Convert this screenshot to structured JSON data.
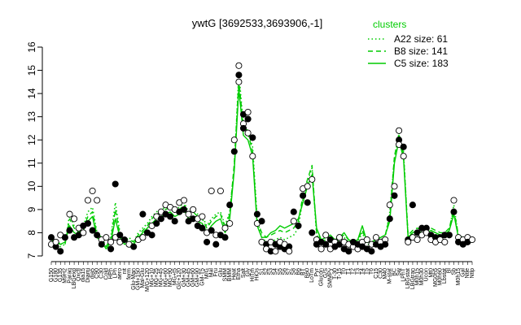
{
  "chart_data": {
    "type": "line",
    "title": "ywtG [3692533,3693906,-1]",
    "xlabel": "",
    "ylabel": "",
    "ylim": [
      7,
      16
    ],
    "yticks": [
      7,
      8,
      9,
      10,
      11,
      12,
      13,
      14,
      15,
      16
    ],
    "grid": false,
    "legend": {
      "title": "clusters",
      "placement": "top-right",
      "color": "#00cc00",
      "entries": [
        {
          "label": "A22 size: 61",
          "style": "dotted"
        },
        {
          "label": "B8 size: 141",
          "style": "dashed"
        },
        {
          "label": "C5 size: 183",
          "style": "solid"
        }
      ]
    },
    "colors": {
      "series": "#00cc00",
      "points": "#000000",
      "axes": "#000000"
    },
    "x_tick_labels": [
      "G150",
      "G180",
      "G135",
      "M9H2",
      "Paraq",
      "LBGexp",
      "Oxctl",
      "dia15",
      "Diami",
      "dia5",
      "C90",
      "C30",
      "Cold",
      "HPh",
      "LPh",
      "aero",
      "nit",
      "ferm",
      "Glu-Man",
      "GM+150",
      "Mal-Glu",
      "M/G+120",
      "MG+10",
      "MG+25",
      "MG+45",
      "MG+60",
      "MG+90",
      "MG+t5",
      "Glc+120",
      "GM+30",
      "GM+45",
      "GM+60",
      "GM+90",
      "GM-T5",
      "M/G",
      "Mal",
      "Fru",
      "Glu",
      "SMM",
      "BMM",
      "Heat",
      "Etha",
      "Salt",
      "Gly",
      "HiTm",
      "HiOs",
      "S1",
      "S2",
      "S3",
      "S4",
      "S5",
      "S6",
      "S7",
      "S8",
      "B6",
      "BT",
      "B60",
      "LoTm",
      "Pyr",
      "Glucon",
      "G/S",
      "SMMPy",
      "T-30",
      "T-15",
      "T0",
      "T1",
      "T2",
      "T3",
      "T4",
      "T5",
      "T6",
      "C15",
      "C30",
      "M40",
      "M-stat",
      "BC",
      "Sw",
      "LPhT",
      "LBGstat",
      "LBGtran",
      "M0h15",
      "M0h30",
      "Ucon",
      "Mt0",
      "MG0h5",
      "M0h60",
      "Lbstat",
      "Bl",
      "Sb",
      "M0h15",
      "Gal",
      "Ntle",
      "Ntlp"
    ],
    "series": [
      {
        "name": "C5 size: 183",
        "style": "solid",
        "values": [
          7.7,
          7.6,
          7.5,
          7.6,
          8.3,
          8.0,
          7.9,
          8.1,
          8.5,
          8.7,
          7.8,
          7.6,
          7.3,
          7.6,
          8.6,
          7.8,
          7.5,
          7.6,
          7.5,
          7.8,
          8.0,
          8.2,
          8.4,
          8.6,
          8.7,
          8.8,
          8.9,
          8.7,
          8.8,
          9.0,
          8.6,
          8.7,
          8.5,
          8.4,
          8.0,
          8.3,
          8.5,
          8.6,
          8.0,
          8.6,
          10.7,
          14.2,
          12.2,
          12.0,
          11.3,
          8.3,
          7.8,
          7.8,
          8.0,
          8.1,
          8.3,
          8.2,
          8.3,
          8.4,
          8.6,
          9.3,
          10.0,
          10.5,
          8.2,
          7.7,
          7.8,
          7.9,
          7.7,
          7.8,
          8.0,
          7.7,
          7.6,
          7.7,
          8.3,
          7.6,
          7.6,
          7.7,
          7.8,
          7.9,
          8.5,
          11.0,
          12.0,
          11.2,
          7.8,
          8.0,
          8.1,
          8.0,
          8.0,
          8.1,
          8.0,
          7.9,
          7.9,
          8.1,
          8.8,
          7.8,
          7.7,
          7.6,
          7.6
        ]
      },
      {
        "name": "B8 size: 141",
        "style": "dashed",
        "values": [
          7.6,
          7.7,
          7.5,
          7.5,
          8.6,
          8.2,
          8.0,
          8.2,
          8.7,
          8.9,
          7.9,
          7.7,
          7.4,
          7.7,
          9.0,
          7.9,
          7.6,
          7.7,
          7.6,
          7.9,
          8.1,
          8.3,
          8.6,
          8.8,
          8.9,
          9.0,
          9.1,
          8.9,
          9.0,
          9.2,
          8.8,
          8.9,
          8.7,
          8.6,
          8.2,
          8.5,
          8.7,
          8.8,
          8.2,
          8.8,
          11.0,
          14.6,
          12.5,
          12.3,
          11.5,
          8.5,
          8.0,
          7.8,
          7.9,
          8.0,
          8.1,
          8.0,
          8.1,
          8.2,
          8.5,
          9.6,
          10.3,
          10.9,
          8.0,
          7.7,
          7.8,
          7.8,
          7.7,
          7.8,
          7.9,
          7.7,
          7.6,
          7.7,
          8.1,
          7.6,
          7.6,
          7.7,
          7.8,
          7.9,
          8.7,
          11.3,
          12.2,
          11.4,
          7.9,
          8.1,
          8.2,
          8.1,
          8.1,
          8.2,
          8.1,
          8.0,
          8.0,
          8.2,
          9.0,
          7.9,
          7.8,
          7.7,
          7.7
        ]
      },
      {
        "name": "A22 size: 61",
        "style": "dotted",
        "values": [
          7.5,
          7.6,
          7.4,
          7.5,
          8.8,
          8.3,
          8.1,
          8.3,
          8.9,
          9.1,
          8.0,
          7.8,
          7.4,
          7.8,
          9.3,
          8.0,
          7.6,
          7.8,
          7.6,
          8.0,
          8.2,
          8.4,
          8.7,
          8.9,
          9.0,
          9.1,
          9.2,
          9.0,
          9.1,
          9.3,
          8.9,
          9.0,
          8.8,
          8.7,
          8.3,
          8.6,
          8.8,
          8.9,
          8.3,
          8.9,
          10.8,
          14.9,
          12.6,
          12.4,
          11.7,
          8.6,
          7.8,
          7.6,
          7.6,
          7.7,
          7.8,
          7.7,
          7.8,
          7.9,
          8.2,
          9.5,
          10.2,
          10.8,
          7.9,
          7.6,
          7.7,
          7.7,
          7.6,
          7.7,
          7.8,
          7.6,
          7.5,
          7.6,
          8.0,
          7.5,
          7.5,
          7.6,
          7.7,
          7.8,
          8.9,
          11.2,
          12.3,
          11.5,
          7.8,
          8.0,
          8.1,
          8.0,
          8.0,
          8.1,
          8.0,
          7.9,
          7.9,
          8.1,
          9.2,
          7.8,
          7.7,
          7.6,
          7.6
        ]
      }
    ],
    "points": [
      {
        "x": 0,
        "y": 7.8
      },
      {
        "x": 0,
        "y": 7.5
      },
      {
        "x": 1,
        "y": 7.4
      },
      {
        "x": 1,
        "y": 7.6
      },
      {
        "x": 2,
        "y": 7.2
      },
      {
        "x": 2,
        "y": 7.9
      },
      {
        "x": 3,
        "y": 7.8
      },
      {
        "x": 4,
        "y": 8.8
      },
      {
        "x": 4,
        "y": 8.1
      },
      {
        "x": 5,
        "y": 8.6
      },
      {
        "x": 5,
        "y": 7.8
      },
      {
        "x": 6,
        "y": 8.2
      },
      {
        "x": 6,
        "y": 7.9
      },
      {
        "x": 7,
        "y": 8.0
      },
      {
        "x": 7,
        "y": 8.3
      },
      {
        "x": 8,
        "y": 9.4
      },
      {
        "x": 8,
        "y": 8.4
      },
      {
        "x": 9,
        "y": 9.8
      },
      {
        "x": 9,
        "y": 8.1
      },
      {
        "x": 10,
        "y": 9.4
      },
      {
        "x": 10,
        "y": 7.9
      },
      {
        "x": 11,
        "y": 7.7
      },
      {
        "x": 11,
        "y": 7.5
      },
      {
        "x": 12,
        "y": 7.8
      },
      {
        "x": 13,
        "y": 7.3
      },
      {
        "x": 13,
        "y": 7.6
      },
      {
        "x": 14,
        "y": 10.1
      },
      {
        "x": 14,
        "y": 7.8
      },
      {
        "x": 15,
        "y": 7.9
      },
      {
        "x": 15,
        "y": 7.6
      },
      {
        "x": 16,
        "y": 7.7
      },
      {
        "x": 17,
        "y": 7.5
      },
      {
        "x": 18,
        "y": 7.4
      },
      {
        "x": 19,
        "y": 7.7
      },
      {
        "x": 20,
        "y": 8.8
      },
      {
        "x": 20,
        "y": 7.8
      },
      {
        "x": 21,
        "y": 8.0
      },
      {
        "x": 22,
        "y": 8.3
      },
      {
        "x": 22,
        "y": 7.9
      },
      {
        "x": 23,
        "y": 8.7
      },
      {
        "x": 23,
        "y": 8.4
      },
      {
        "x": 24,
        "y": 8.9
      },
      {
        "x": 24,
        "y": 8.6
      },
      {
        "x": 25,
        "y": 9.2
      },
      {
        "x": 25,
        "y": 8.8
      },
      {
        "x": 26,
        "y": 9.1
      },
      {
        "x": 26,
        "y": 8.7
      },
      {
        "x": 27,
        "y": 9.0
      },
      {
        "x": 27,
        "y": 8.5
      },
      {
        "x": 28,
        "y": 9.3
      },
      {
        "x": 28,
        "y": 8.9
      },
      {
        "x": 29,
        "y": 9.4
      },
      {
        "x": 29,
        "y": 9.0
      },
      {
        "x": 30,
        "y": 8.8
      },
      {
        "x": 30,
        "y": 8.5
      },
      {
        "x": 31,
        "y": 9.0
      },
      {
        "x": 31,
        "y": 8.6
      },
      {
        "x": 32,
        "y": 8.6
      },
      {
        "x": 32,
        "y": 8.3
      },
      {
        "x": 33,
        "y": 8.7
      },
      {
        "x": 33,
        "y": 8.2
      },
      {
        "x": 34,
        "y": 8.0
      },
      {
        "x": 34,
        "y": 7.6
      },
      {
        "x": 35,
        "y": 9.8
      },
      {
        "x": 35,
        "y": 8.1
      },
      {
        "x": 36,
        "y": 7.9
      },
      {
        "x": 36,
        "y": 7.5
      },
      {
        "x": 37,
        "y": 9.8
      },
      {
        "x": 37,
        "y": 7.9
      },
      {
        "x": 38,
        "y": 8.2
      },
      {
        "x": 38,
        "y": 7.8
      },
      {
        "x": 39,
        "y": 8.4
      },
      {
        "x": 39,
        "y": 9.2
      },
      {
        "x": 40,
        "y": 12.0
      },
      {
        "x": 40,
        "y": 11.5
      },
      {
        "x": 41,
        "y": 15.2
      },
      {
        "x": 41,
        "y": 14.8
      },
      {
        "x": 41,
        "y": 14.5
      },
      {
        "x": 42,
        "y": 13.1
      },
      {
        "x": 42,
        "y": 12.7
      },
      {
        "x": 42,
        "y": 12.5
      },
      {
        "x": 43,
        "y": 13.2
      },
      {
        "x": 43,
        "y": 12.9
      },
      {
        "x": 43,
        "y": 12.3
      },
      {
        "x": 44,
        "y": 12.1
      },
      {
        "x": 44,
        "y": 11.3
      },
      {
        "x": 45,
        "y": 8.8
      },
      {
        "x": 45,
        "y": 8.4
      },
      {
        "x": 46,
        "y": 8.5
      },
      {
        "x": 46,
        "y": 7.6
      },
      {
        "x": 47,
        "y": 7.5
      },
      {
        "x": 47,
        "y": 7.3
      },
      {
        "x": 48,
        "y": 7.2
      },
      {
        "x": 48,
        "y": 7.6
      },
      {
        "x": 49,
        "y": 7.5
      },
      {
        "x": 49,
        "y": 7.2
      },
      {
        "x": 50,
        "y": 7.4
      },
      {
        "x": 50,
        "y": 7.6
      },
      {
        "x": 51,
        "y": 7.3
      },
      {
        "x": 51,
        "y": 7.5
      },
      {
        "x": 52,
        "y": 7.4
      },
      {
        "x": 52,
        "y": 7.2
      },
      {
        "x": 53,
        "y": 8.9
      },
      {
        "x": 53,
        "y": 8.5
      },
      {
        "x": 54,
        "y": 8.3
      },
      {
        "x": 55,
        "y": 9.9
      },
      {
        "x": 55,
        "y": 9.6
      },
      {
        "x": 56,
        "y": 10.0
      },
      {
        "x": 56,
        "y": 9.3
      },
      {
        "x": 57,
        "y": 10.3
      },
      {
        "x": 57,
        "y": 8.0
      },
      {
        "x": 58,
        "y": 7.7
      },
      {
        "x": 58,
        "y": 7.5
      },
      {
        "x": 59,
        "y": 7.3
      },
      {
        "x": 59,
        "y": 7.6
      },
      {
        "x": 60,
        "y": 7.9
      },
      {
        "x": 60,
        "y": 7.5
      },
      {
        "x": 61,
        "y": 7.3
      },
      {
        "x": 61,
        "y": 7.7
      },
      {
        "x": 62,
        "y": 7.6
      },
      {
        "x": 62,
        "y": 7.4
      },
      {
        "x": 63,
        "y": 7.8
      },
      {
        "x": 63,
        "y": 7.5
      },
      {
        "x": 64,
        "y": 7.6
      },
      {
        "x": 64,
        "y": 7.3
      },
      {
        "x": 65,
        "y": 7.5
      },
      {
        "x": 65,
        "y": 7.2
      },
      {
        "x": 66,
        "y": 7.4
      },
      {
        "x": 66,
        "y": 7.6
      },
      {
        "x": 67,
        "y": 7.3
      },
      {
        "x": 67,
        "y": 7.5
      },
      {
        "x": 68,
        "y": 7.6
      },
      {
        "x": 68,
        "y": 7.4
      },
      {
        "x": 69,
        "y": 7.7
      },
      {
        "x": 69,
        "y": 7.3
      },
      {
        "x": 70,
        "y": 7.5
      },
      {
        "x": 70,
        "y": 7.2
      },
      {
        "x": 71,
        "y": 7.8
      },
      {
        "x": 71,
        "y": 7.5
      },
      {
        "x": 72,
        "y": 7.6
      },
      {
        "x": 72,
        "y": 7.4
      },
      {
        "x": 73,
        "y": 7.7
      },
      {
        "x": 73,
        "y": 7.5
      },
      {
        "x": 74,
        "y": 9.2
      },
      {
        "x": 74,
        "y": 8.6
      },
      {
        "x": 75,
        "y": 10.0
      },
      {
        "x": 75,
        "y": 9.6
      },
      {
        "x": 76,
        "y": 12.4
      },
      {
        "x": 76,
        "y": 12.0
      },
      {
        "x": 76,
        "y": 11.8
      },
      {
        "x": 77,
        "y": 11.7
      },
      {
        "x": 77,
        "y": 11.3
      },
      {
        "x": 78,
        "y": 7.7
      },
      {
        "x": 78,
        "y": 7.6
      },
      {
        "x": 79,
        "y": 9.2
      },
      {
        "x": 79,
        "y": 7.8
      },
      {
        "x": 80,
        "y": 8.0
      },
      {
        "x": 80,
        "y": 7.7
      },
      {
        "x": 81,
        "y": 8.2
      },
      {
        "x": 81,
        "y": 7.9
      },
      {
        "x": 82,
        "y": 8.2
      },
      {
        "x": 82,
        "y": 8.0
      },
      {
        "x": 83,
        "y": 7.9
      },
      {
        "x": 83,
        "y": 7.7
      },
      {
        "x": 84,
        "y": 7.8
      },
      {
        "x": 84,
        "y": 7.6
      },
      {
        "x": 85,
        "y": 7.8
      },
      {
        "x": 85,
        "y": 7.7
      },
      {
        "x": 86,
        "y": 7.9
      },
      {
        "x": 86,
        "y": 7.6
      },
      {
        "x": 87,
        "y": 7.9
      },
      {
        "x": 88,
        "y": 9.4
      },
      {
        "x": 88,
        "y": 8.9
      },
      {
        "x": 89,
        "y": 7.8
      },
      {
        "x": 89,
        "y": 7.6
      },
      {
        "x": 90,
        "y": 7.7
      },
      {
        "x": 90,
        "y": 7.5
      },
      {
        "x": 91,
        "y": 7.8
      },
      {
        "x": 91,
        "y": 7.6
      },
      {
        "x": 92,
        "y": 7.7
      }
    ]
  }
}
